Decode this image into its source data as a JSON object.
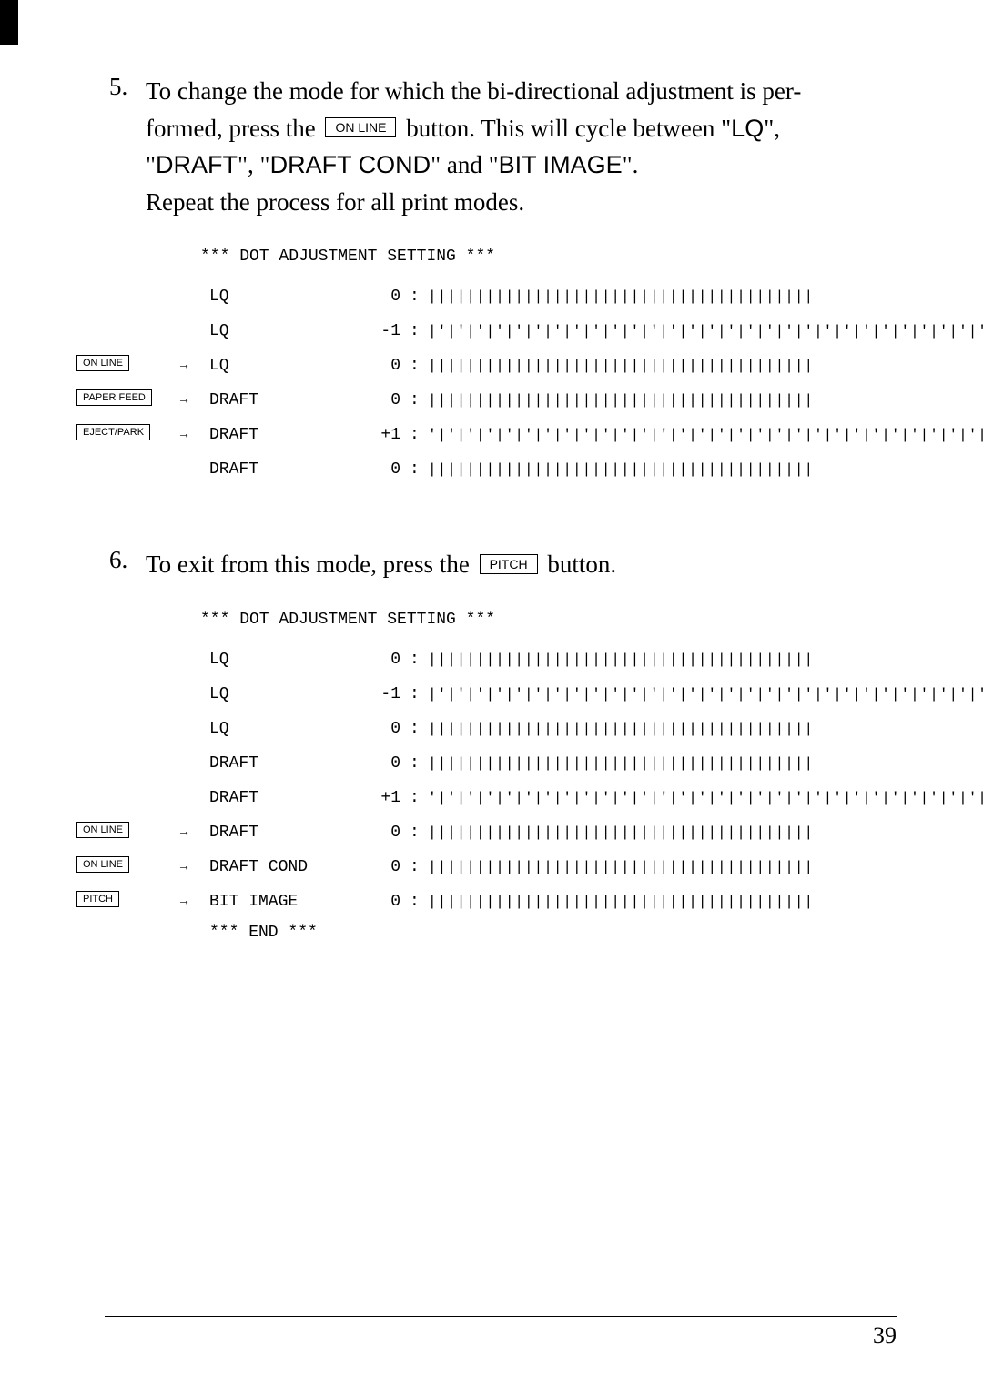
{
  "step5": {
    "num": "5.",
    "line1a": "To change the mode for which the bi-directional adjustment is per-",
    "line2a": "formed, press the ",
    "button": "ON LINE",
    "line2b": " button. This will cycle between \"",
    "lq": "LQ",
    "line2c": "\",",
    "line3a": "\"",
    "draft": "DRAFT",
    "line3b": "\", \"",
    "draftcond": "DRAFT COND",
    "line3c": "\" and \"",
    "bitimage": "BIT IMAGE",
    "line3d": "\".",
    "line4": "Repeat the process for all print modes."
  },
  "listing1": {
    "heading": "*** DOT ADJUSTMENT SETTING ***",
    "rows": [
      {
        "label": "",
        "mode": "LQ",
        "val": "0",
        "pattern": "||||||||||||||||||||||||||||||||||||||||"
      },
      {
        "label": "",
        "mode": "LQ",
        "val": "-1",
        "pattern": "|'|'|'|'|'|'|'|'|'|'|'|'|'|'|'|'|'|'|'|'|'|'|'|'|'|'|'|'|'|'|'|'|'|'|'|'|'|'|'|'"
      },
      {
        "label": "ON LINE",
        "mode": "LQ",
        "val": "0",
        "pattern": "||||||||||||||||||||||||||||||||||||||||"
      },
      {
        "label": "PAPER FEED",
        "mode": "DRAFT",
        "val": "0",
        "pattern": "||||||||||||||||||||||||||||||||||||||||"
      },
      {
        "label": "EJECT/PARK",
        "mode": "DRAFT",
        "val": "+1",
        "pattern": "'|'|'|'|'|'|'|'|'|'|'|'|'|'|'|'|'|'|'|'|'|'|'|'|'|'|'|'|'|'|'|'|'|'|'|'|'|'|'|'|"
      },
      {
        "label": "",
        "mode": "DRAFT",
        "val": "0",
        "pattern": "||||||||||||||||||||||||||||||||||||||||"
      }
    ]
  },
  "step6": {
    "num": "6.",
    "text1": "To exit from this mode, press the ",
    "button": "PITCH",
    "text2": " button."
  },
  "listing2": {
    "heading": "*** DOT ADJUSTMENT SETTING ***",
    "rows": [
      {
        "label": "",
        "mode": "LQ",
        "val": "0",
        "pattern": "||||||||||||||||||||||||||||||||||||||||"
      },
      {
        "label": "",
        "mode": "LQ",
        "val": "-1",
        "pattern": "|'|'|'|'|'|'|'|'|'|'|'|'|'|'|'|'|'|'|'|'|'|'|'|'|'|'|'|'|'|'|'|'|'|'|'|'|'|'|'|'"
      },
      {
        "label": "",
        "mode": "LQ",
        "val": "0",
        "pattern": "||||||||||||||||||||||||||||||||||||||||"
      },
      {
        "label": "",
        "mode": "DRAFT",
        "val": "0",
        "pattern": "||||||||||||||||||||||||||||||||||||||||"
      },
      {
        "label": "",
        "mode": "DRAFT",
        "val": "+1",
        "pattern": "'|'|'|'|'|'|'|'|'|'|'|'|'|'|'|'|'|'|'|'|'|'|'|'|'|'|'|'|'|'|'|'|'|'|'|'|'|'|'|'|"
      },
      {
        "label": "ON LINE",
        "mode": "DRAFT",
        "val": "0",
        "pattern": "||||||||||||||||||||||||||||||||||||||||"
      },
      {
        "label": "ON LINE",
        "mode": "DRAFT COND",
        "val": "0",
        "pattern": "||||||||||||||||||||||||||||||||||||||||"
      },
      {
        "label": "PITCH",
        "mode": "BIT IMAGE",
        "val": "0",
        "pattern": "||||||||||||||||||||||||||||||||||||||||"
      }
    ],
    "end": "*** END ***"
  },
  "pageNumber": "39"
}
